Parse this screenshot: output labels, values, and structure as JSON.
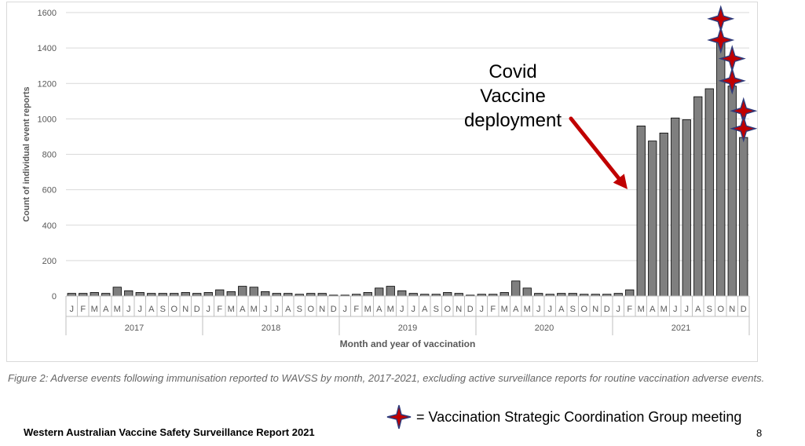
{
  "chart_data": {
    "type": "bar",
    "xlabel": "Month and year of vaccination",
    "ylabel": "Count of individual event reports",
    "ylim": [
      0,
      1600
    ],
    "yticks": [
      0,
      200,
      400,
      600,
      800,
      1000,
      1200,
      1400,
      1600
    ],
    "grid": true,
    "months": [
      "J",
      "F",
      "M",
      "A",
      "M",
      "J",
      "J",
      "A",
      "S",
      "O",
      "N",
      "D"
    ],
    "years": [
      "2017",
      "2018",
      "2019",
      "2020",
      "2021"
    ],
    "values": [
      15,
      15,
      20,
      15,
      50,
      30,
      20,
      15,
      15,
      15,
      20,
      15,
      20,
      35,
      25,
      55,
      50,
      25,
      15,
      15,
      10,
      15,
      15,
      5,
      5,
      10,
      20,
      45,
      55,
      30,
      15,
      10,
      10,
      20,
      15,
      5,
      10,
      10,
      20,
      85,
      45,
      15,
      10,
      15,
      15,
      10,
      10,
      10,
      15,
      35,
      960,
      875,
      920,
      1005,
      995,
      1125,
      1170,
      1445,
      1185,
      895
    ],
    "bar_color": "#7f7f7f",
    "marker_color": "#c00000",
    "marker_outline": "#2e3a7a",
    "markers": [
      {
        "index": 57,
        "value": 1565
      },
      {
        "index": 57,
        "value": 1445
      },
      {
        "index": 58,
        "value": 1340
      },
      {
        "index": 58,
        "value": 1215
      },
      {
        "index": 59,
        "value": 1045
      },
      {
        "index": 59,
        "value": 945
      }
    ]
  },
  "annotation": {
    "lines": [
      "Covid",
      "Vaccine",
      "deployment"
    ],
    "arrow_color": "#c00000"
  },
  "caption": "Figure 2: Adverse events following immunisation reported to WAVSS by month, 2017-2021, excluding active surveillance reports for routine vaccination adverse events.",
  "legend": {
    "text": "= Vaccination Strategic Coordination Group meeting",
    "icon": "four-point-star-icon"
  },
  "footer": {
    "title": "Western Australian Vaccine Safety Surveillance Report 2021",
    "page": "8"
  }
}
